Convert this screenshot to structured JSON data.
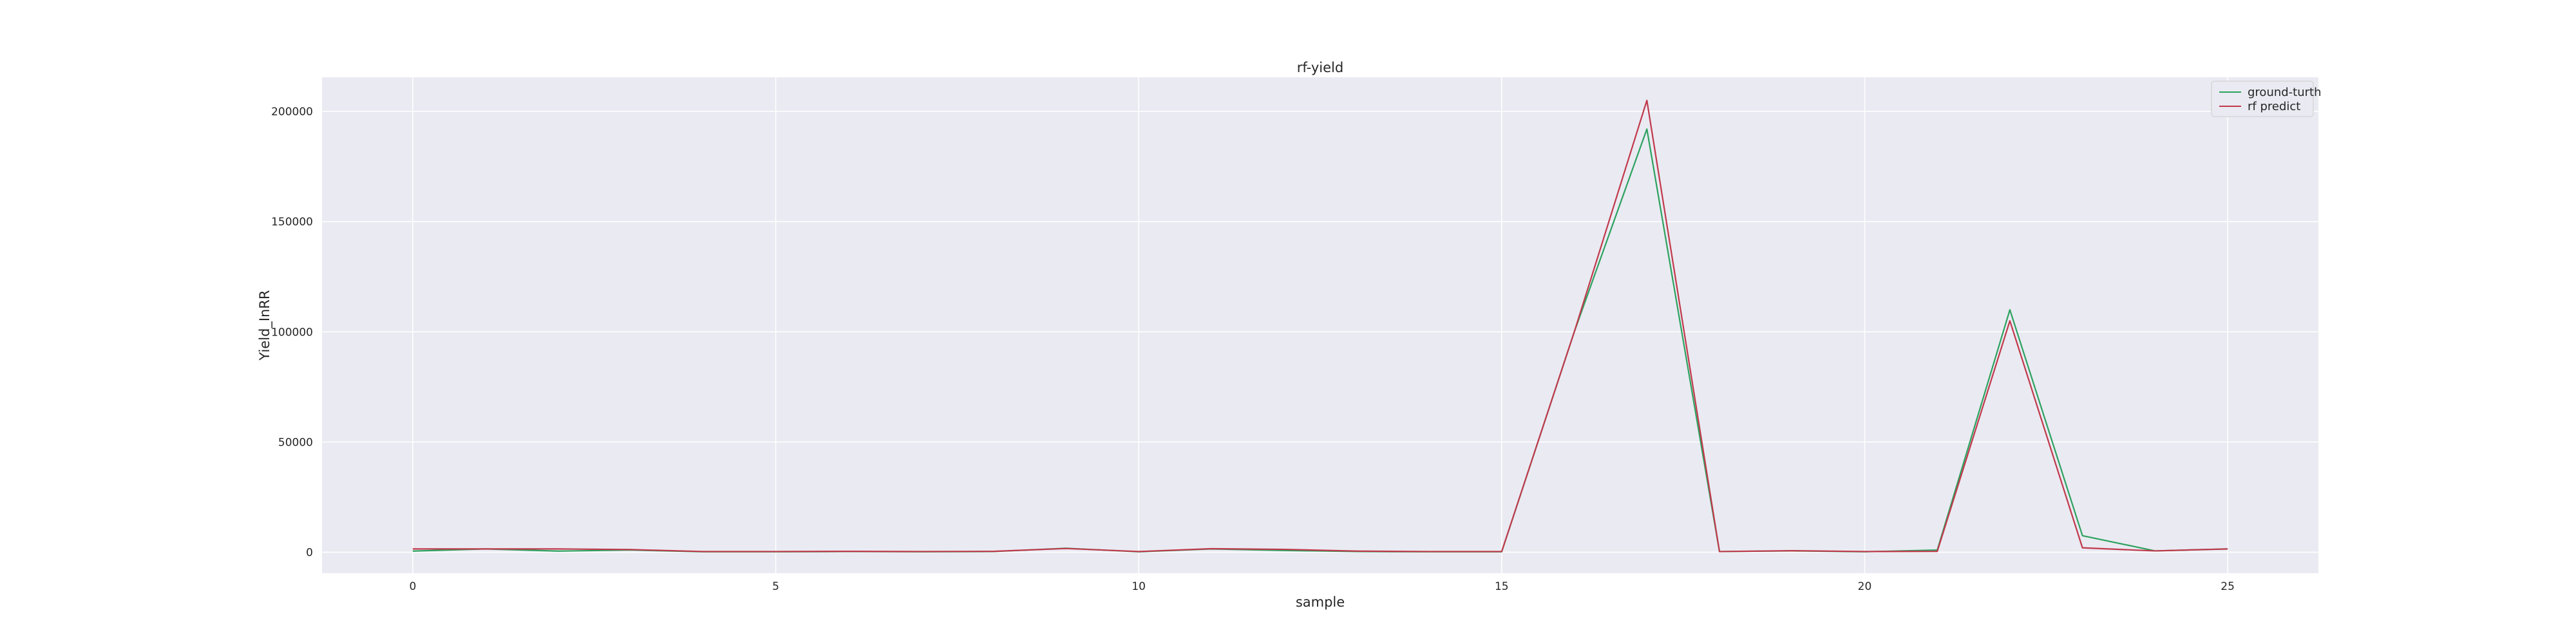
{
  "chart_data": {
    "type": "line",
    "title": "rf-yield",
    "xlabel": "sample",
    "ylabel": "Yield_InRR",
    "xlim": [
      -1.25,
      26.25
    ],
    "ylim": [
      -9500,
      215500
    ],
    "xticks": [
      0,
      5,
      10,
      15,
      20,
      25
    ],
    "yticks": [
      0,
      50000,
      100000,
      150000,
      200000
    ],
    "grid": true,
    "legend": "top-right",
    "x": [
      0,
      1,
      2,
      3,
      4,
      5,
      6,
      7,
      8,
      9,
      10,
      11,
      12,
      13,
      14,
      15,
      16,
      17,
      18,
      19,
      20,
      21,
      22,
      23,
      24,
      25
    ],
    "series": [
      {
        "name": "ground-turth",
        "color": "#2ca25f",
        "values": [
          500,
          1500,
          500,
          1000,
          200,
          200,
          300,
          200,
          300,
          1800,
          200,
          1500,
          800,
          300,
          200,
          200,
          100000,
          192000,
          300,
          600,
          200,
          1000,
          110000,
          7500,
          600,
          1500
        ]
      },
      {
        "name": "rf predict",
        "color": "#c0394b",
        "values": [
          1500,
          1500,
          1500,
          1200,
          300,
          300,
          400,
          300,
          400,
          1700,
          300,
          1600,
          1300,
          500,
          300,
          300,
          100000,
          205000,
          300,
          700,
          300,
          400,
          105000,
          2000,
          600,
          1500
        ]
      }
    ]
  }
}
